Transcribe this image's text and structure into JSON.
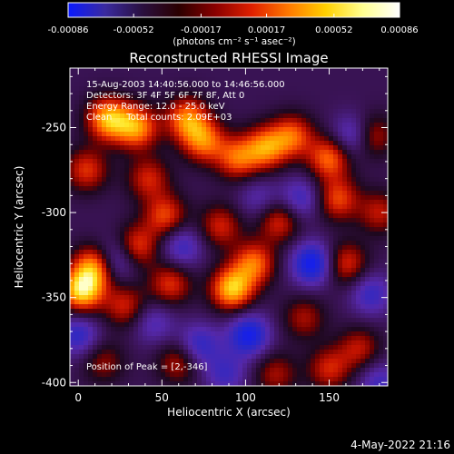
{
  "colorbar": {
    "ticks": [
      "-0.00086",
      "-0.00052",
      "-0.00017",
      "0.00017",
      "0.00052",
      "0.00086"
    ],
    "units_label": "(photons cm⁻² s⁻¹ asec⁻²)",
    "colors": [
      "#0a1aff",
      "#3a2aa0",
      "#2a1040",
      "#2a0000",
      "#8a0000",
      "#e02000",
      "#ff7a00",
      "#ffd000",
      "#ffff90",
      "#ffffff"
    ]
  },
  "chart_data": {
    "type": "heatmap",
    "title": "Reconstructed RHESSI Image",
    "xlabel": "Heliocentric X (arcsec)",
    "ylabel": "Heliocentric Y (arcsec)",
    "xlim": [
      -5,
      185
    ],
    "ylim": [
      -402,
      -215
    ],
    "x_ticks": [
      0,
      50,
      100,
      150
    ],
    "y_ticks": [
      -250,
      -300,
      -350,
      -400
    ],
    "annotations": [
      "15-Aug-2003 14:40:56.000 to 14:46:56.000",
      "Detectors: 3F 4F 5F 6F 7F 8F, Att 0",
      "Energy Range: 12.0 - 25.0 keV",
      "Clean     Total counts: 2.09E+03"
    ],
    "peak_label": "Position of Peak = [2,-346]",
    "peak": {
      "x": 2,
      "y": -346
    },
    "colorscale_range": [
      -0.00086,
      0.00086
    ],
    "blobs": [
      {
        "x": 2,
        "y": -346,
        "v": 1.0
      },
      {
        "x": 10,
        "y": -332,
        "v": 0.85
      },
      {
        "x": 18,
        "y": -245,
        "v": 0.9
      },
      {
        "x": 35,
        "y": -250,
        "v": 0.8
      },
      {
        "x": 65,
        "y": -245,
        "v": 0.75
      },
      {
        "x": 75,
        "y": -258,
        "v": 0.7
      },
      {
        "x": 52,
        "y": -302,
        "v": 0.6
      },
      {
        "x": 35,
        "y": -320,
        "v": 0.6
      },
      {
        "x": 5,
        "y": -275,
        "v": 0.55
      },
      {
        "x": 95,
        "y": -268,
        "v": 0.65
      },
      {
        "x": 112,
        "y": -262,
        "v": 0.75
      },
      {
        "x": 128,
        "y": -255,
        "v": 0.65
      },
      {
        "x": 150,
        "y": -268,
        "v": 0.7
      },
      {
        "x": 155,
        "y": -292,
        "v": 0.6
      },
      {
        "x": 175,
        "y": -255,
        "v": 0.55
      },
      {
        "x": 180,
        "y": -300,
        "v": 0.45
      },
      {
        "x": 92,
        "y": -345,
        "v": 0.95
      },
      {
        "x": 105,
        "y": -330,
        "v": 0.7
      },
      {
        "x": 55,
        "y": -342,
        "v": 0.55
      },
      {
        "x": 28,
        "y": -355,
        "v": 0.5
      },
      {
        "x": 85,
        "y": -308,
        "v": 0.5
      },
      {
        "x": 120,
        "y": -305,
        "v": 0.55
      },
      {
        "x": 160,
        "y": -330,
        "v": 0.55
      },
      {
        "x": 135,
        "y": -362,
        "v": 0.4
      },
      {
        "x": 150,
        "y": -392,
        "v": 0.5
      },
      {
        "x": 168,
        "y": -380,
        "v": 0.45
      },
      {
        "x": 60,
        "y": -388,
        "v": 0.45
      },
      {
        "x": 15,
        "y": -388,
        "v": 0.35
      },
      {
        "x": 118,
        "y": -395,
        "v": 0.4
      },
      {
        "x": 42,
        "y": -280,
        "v": 0.5
      },
      {
        "x": 140,
        "y": -330,
        "v": -0.75
      },
      {
        "x": 102,
        "y": -372,
        "v": -0.7
      },
      {
        "x": 22,
        "y": -328,
        "v": -0.55
      },
      {
        "x": 72,
        "y": -378,
        "v": -0.5
      },
      {
        "x": 165,
        "y": -255,
        "v": -0.55
      },
      {
        "x": 133,
        "y": -292,
        "v": -0.45
      },
      {
        "x": 62,
        "y": -320,
        "v": -0.45
      },
      {
        "x": 0,
        "y": -372,
        "v": -0.5
      },
      {
        "x": 88,
        "y": -395,
        "v": -0.4
      },
      {
        "x": 175,
        "y": -348,
        "v": -0.45
      },
      {
        "x": 45,
        "y": -365,
        "v": -0.35
      },
      {
        "x": 108,
        "y": -292,
        "v": -0.3
      },
      {
        "x": 180,
        "y": -400,
        "v": -0.4
      }
    ]
  },
  "footer": {
    "timestamp": "4-May-2022 21:16"
  }
}
